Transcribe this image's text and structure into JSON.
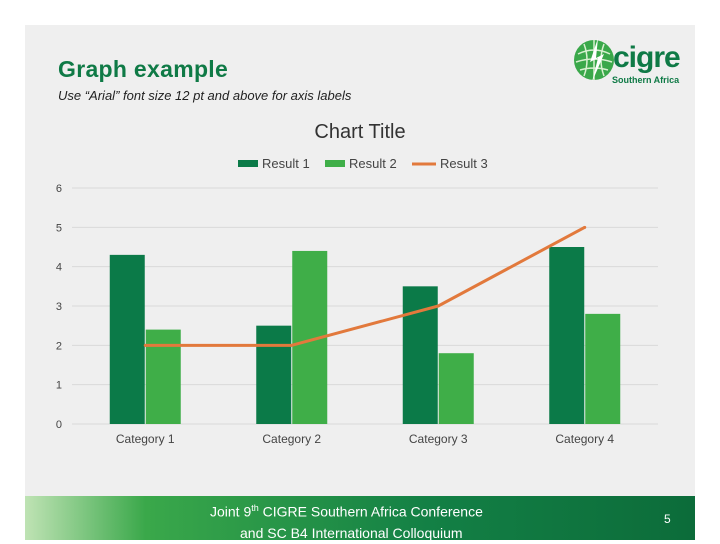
{
  "slide": {
    "title": "Graph example",
    "subtitle": "Use “Arial” font size 12 pt and above for axis labels",
    "logo": {
      "wordmark": "cigre",
      "sub": "Southern Africa",
      "icon": "globe-leaf-icon"
    },
    "footer": {
      "line1_pre": "Joint 9",
      "line1_sup": "th",
      "line1_post": " CIGRE Southern Africa Conference",
      "line2": "and SC B4 International Colloquium"
    },
    "page_number": "5"
  },
  "colors": {
    "result1": "#0b7a48",
    "result2": "#3fae48",
    "result3": "#e2793c",
    "title_green": "#0f7a46"
  },
  "chart_data": {
    "type": "bar",
    "title": "Chart Title",
    "categories": [
      "Category 1",
      "Category 2",
      "Category 3",
      "Category 4"
    ],
    "series": [
      {
        "name": "Result 1",
        "type": "bar",
        "values": [
          4.3,
          2.5,
          3.5,
          4.5
        ]
      },
      {
        "name": "Result 2",
        "type": "bar",
        "values": [
          2.4,
          4.4,
          1.8,
          2.8
        ]
      },
      {
        "name": "Result 3",
        "type": "line",
        "values": [
          2,
          2,
          3,
          5
        ]
      }
    ],
    "yticks": [
      "0",
      "1",
      "2",
      "3",
      "4",
      "5",
      "6"
    ],
    "ylim": [
      0,
      6
    ],
    "grid": true,
    "legend": "top"
  }
}
